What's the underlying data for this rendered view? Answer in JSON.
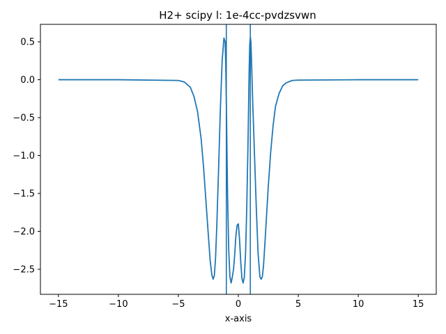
{
  "chart_data": {
    "type": "line",
    "title": "H2+ scipy l: 1e-4cc-pvdzsvwn",
    "xlabel": "x-axis",
    "ylabel": "",
    "xlim": [
      -16.5,
      16.5
    ],
    "ylim": [
      -2.83,
      0.73
    ],
    "grid": false,
    "x_ticks": [
      -15,
      -10,
      -5,
      0,
      5,
      10,
      15
    ],
    "x_tick_labels": [
      "−15",
      "−10",
      "−5",
      "0",
      "5",
      "10",
      "15"
    ],
    "y_ticks": [
      0.5,
      0.0,
      -0.5,
      -1.0,
      -1.5,
      -2.0,
      -2.5
    ],
    "y_tick_labels": [
      "0.5",
      "0.0",
      "−0.5",
      "−1.0",
      "−1.5",
      "−2.0",
      "−2.5"
    ],
    "vlines": [
      -1.0,
      1.0
    ],
    "color": "#1f77b4",
    "series": [
      {
        "x": [
          -15,
          -10,
          -5,
          -4.5,
          -4.0,
          -3.7,
          -3.4,
          -3.1,
          -2.9,
          -2.7,
          -2.5,
          -2.35,
          -2.2,
          -2.1,
          -2.0,
          -1.9,
          -1.8,
          -1.65,
          -1.5,
          -1.35,
          -1.2,
          -1.1,
          -1.05,
          -1.0,
          -0.95,
          -0.9,
          -0.8,
          -0.7,
          -0.6,
          -0.5,
          -0.4,
          -0.3,
          -0.2,
          -0.1,
          0.0,
          0.1,
          0.2,
          0.3,
          0.4,
          0.5,
          0.6,
          0.7,
          0.8,
          0.9,
          0.95,
          1.0,
          1.05,
          1.1,
          1.2,
          1.35,
          1.5,
          1.65,
          1.8,
          1.9,
          2.0,
          2.1,
          2.2,
          2.35,
          2.5,
          2.7,
          2.9,
          3.1,
          3.4,
          3.7,
          4.0,
          4.5,
          5,
          10,
          15
        ],
        "y": [
          0.0,
          0.0,
          -0.01,
          -0.03,
          -0.1,
          -0.22,
          -0.42,
          -0.78,
          -1.15,
          -1.6,
          -2.05,
          -2.38,
          -2.58,
          -2.63,
          -2.58,
          -2.35,
          -1.95,
          -1.2,
          -0.4,
          0.25,
          0.55,
          0.5,
          0.2,
          -0.3,
          -0.9,
          -1.5,
          -2.25,
          -2.6,
          -2.68,
          -2.6,
          -2.5,
          -2.3,
          -2.05,
          -1.92,
          -1.9,
          -2.1,
          -2.4,
          -2.62,
          -2.68,
          -2.6,
          -2.3,
          -1.7,
          -0.9,
          0.1,
          0.45,
          0.56,
          0.5,
          0.25,
          -0.3,
          -1.0,
          -1.7,
          -2.3,
          -2.6,
          -2.63,
          -2.6,
          -2.45,
          -2.2,
          -1.8,
          -1.4,
          -0.95,
          -0.6,
          -0.35,
          -0.18,
          -0.08,
          -0.04,
          -0.01,
          -0.005,
          0.0,
          0.0
        ]
      }
    ]
  }
}
